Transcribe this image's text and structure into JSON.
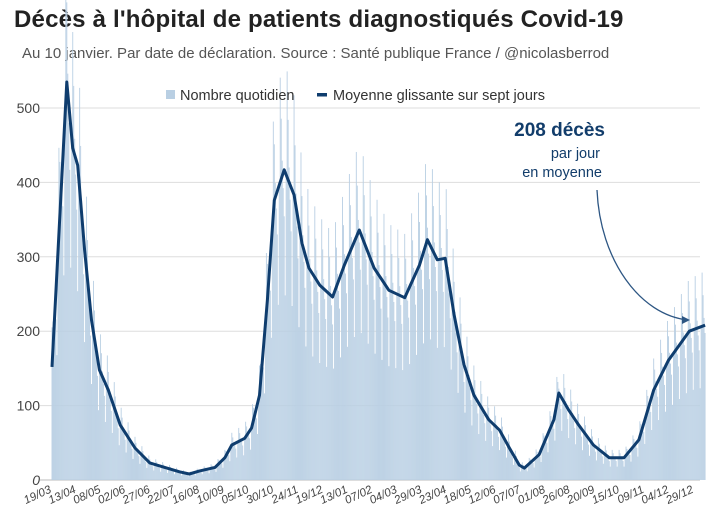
{
  "title": "Décès à l'hôpital de patients diagnostiqués Covid-19",
  "subtitle": "Au 10 janvier. Par date de déclaration. Source : Santé publique France / @nicolasberrod",
  "annotation": {
    "value": "208 décès",
    "line2": "par jour",
    "line3": "en moyenne"
  },
  "colors": {
    "bars": "#b9cfe3",
    "line": "#0f3d6e",
    "grid": "#dddddd",
    "annotation": "#123d6b"
  },
  "chart_data": {
    "type": "bar+line",
    "title": "Décès à l'hôpital de patients diagnostiqués Covid-19",
    "xlabel": "",
    "ylabel": "",
    "ylim": [
      0,
      520
    ],
    "yticks": [
      0,
      100,
      200,
      300,
      400,
      500
    ],
    "grid": true,
    "legend_position": "top",
    "x_start": "2020-03-19",
    "x_end": "2022-01-09",
    "xticks": [
      {
        "date": "2020-03-19",
        "label": "19/03"
      },
      {
        "date": "2020-04-13",
        "label": "13/04"
      },
      {
        "date": "2020-05-08",
        "label": "08/05"
      },
      {
        "date": "2020-06-02",
        "label": "02/06"
      },
      {
        "date": "2020-06-27",
        "label": "27/06"
      },
      {
        "date": "2020-07-22",
        "label": "22/07"
      },
      {
        "date": "2020-08-16",
        "label": "16/08"
      },
      {
        "date": "2020-09-10",
        "label": "10/09"
      },
      {
        "date": "2020-10-05",
        "label": "05/10"
      },
      {
        "date": "2020-10-30",
        "label": "30/10"
      },
      {
        "date": "2020-11-24",
        "label": "24/11"
      },
      {
        "date": "2020-12-19",
        "label": "19/12"
      },
      {
        "date": "2021-01-13",
        "label": "13/01"
      },
      {
        "date": "2021-02-07",
        "label": "07/02"
      },
      {
        "date": "2021-03-04",
        "label": "04/03"
      },
      {
        "date": "2021-03-29",
        "label": "29/03"
      },
      {
        "date": "2021-04-23",
        "label": "23/04"
      },
      {
        "date": "2021-05-18",
        "label": "18/05"
      },
      {
        "date": "2021-06-12",
        "label": "12/06"
      },
      {
        "date": "2021-07-07",
        "label": "07/07"
      },
      {
        "date": "2021-08-01",
        "label": "01/08"
      },
      {
        "date": "2021-08-26",
        "label": "26/08"
      },
      {
        "date": "2021-09-20",
        "label": "20/09"
      },
      {
        "date": "2021-10-15",
        "label": "15/10"
      },
      {
        "date": "2021-11-09",
        "label": "09/11"
      },
      {
        "date": "2021-12-04",
        "label": "04/12"
      },
      {
        "date": "2021-12-29",
        "label": "29/12"
      }
    ],
    "series": [
      {
        "name": "Nombre quotidien",
        "type": "bar",
        "note_values_follow_average": true
      },
      {
        "name": "Moyenne glissante sur sept jours",
        "type": "line",
        "points": [
          [
            "2020-03-19",
            152
          ],
          [
            "2020-04-03",
            535
          ],
          [
            "2020-04-09",
            446
          ],
          [
            "2020-04-14",
            423
          ],
          [
            "2020-04-21",
            309
          ],
          [
            "2020-04-28",
            215
          ],
          [
            "2020-05-06",
            148
          ],
          [
            "2020-05-15",
            121
          ],
          [
            "2020-05-27",
            74
          ],
          [
            "2020-06-11",
            43
          ],
          [
            "2020-06-26",
            23
          ],
          [
            "2020-07-06",
            19
          ],
          [
            "2020-07-26",
            11
          ],
          [
            "2020-08-05",
            8
          ],
          [
            "2020-08-15",
            12
          ],
          [
            "2020-08-31",
            17
          ],
          [
            "2020-09-10",
            30
          ],
          [
            "2020-09-17",
            47
          ],
          [
            "2020-09-30",
            56
          ],
          [
            "2020-10-07",
            70
          ],
          [
            "2020-10-15",
            114
          ],
          [
            "2020-10-23",
            242
          ],
          [
            "2020-10-30",
            376
          ],
          [
            "2020-11-09",
            417
          ],
          [
            "2020-11-19",
            383
          ],
          [
            "2020-11-27",
            318
          ],
          [
            "2020-12-04",
            285
          ],
          [
            "2020-12-15",
            262
          ],
          [
            "2020-12-28",
            246
          ],
          [
            "2021-01-09",
            289
          ],
          [
            "2021-01-24",
            336
          ],
          [
            "2021-02-08",
            285
          ],
          [
            "2021-02-23",
            255
          ],
          [
            "2021-03-11",
            245
          ],
          [
            "2021-03-26",
            289
          ],
          [
            "2021-04-03",
            323
          ],
          [
            "2021-04-13",
            296
          ],
          [
            "2021-04-21",
            298
          ],
          [
            "2021-04-30",
            222
          ],
          [
            "2021-05-10",
            155
          ],
          [
            "2021-05-20",
            114
          ],
          [
            "2021-06-04",
            81
          ],
          [
            "2021-06-15",
            67
          ],
          [
            "2021-06-25",
            43
          ],
          [
            "2021-07-05",
            20
          ],
          [
            "2021-07-10",
            16
          ],
          [
            "2021-07-25",
            34
          ],
          [
            "2021-08-09",
            81
          ],
          [
            "2021-08-14",
            117
          ],
          [
            "2021-08-24",
            94
          ],
          [
            "2021-09-03",
            74
          ],
          [
            "2021-09-18",
            47
          ],
          [
            "2021-10-04",
            30
          ],
          [
            "2021-10-19",
            30
          ],
          [
            "2021-11-03",
            54
          ],
          [
            "2021-11-18",
            121
          ],
          [
            "2021-12-03",
            161
          ],
          [
            "2021-12-24",
            200
          ],
          [
            "2022-01-09",
            208
          ]
        ]
      }
    ]
  }
}
